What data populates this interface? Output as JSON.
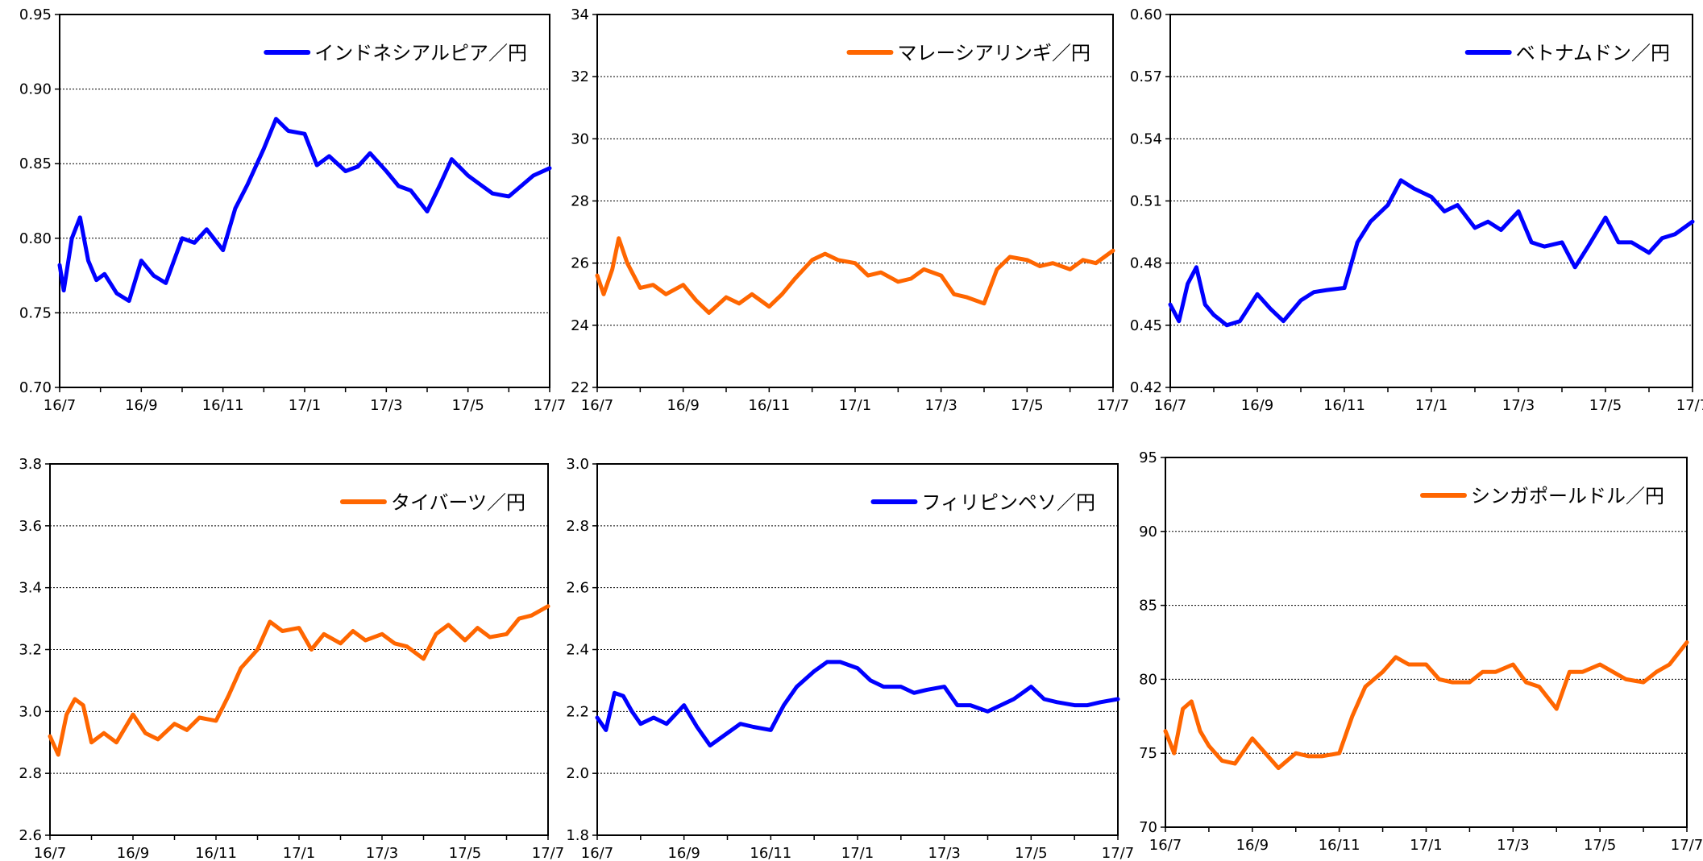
{
  "colors": {
    "blue": "#0000ff",
    "orange": "#ff6600"
  },
  "chart_data": [
    {
      "type": "line",
      "legend": "インドネシアルピア／円",
      "color": "#0000ff",
      "legend_position": "top-right",
      "grid": true,
      "ylim": [
        0.7,
        0.95
      ],
      "yticks": [
        0.7,
        0.75,
        0.8,
        0.85,
        0.9,
        0.95
      ],
      "ytick_labels": [
        "0.70",
        "0.75",
        "0.80",
        "0.85",
        "0.90",
        "0.95"
      ],
      "xtick_labels": [
        "16/7",
        "16/9",
        "16/11",
        "17/1",
        "17/3",
        "17/5",
        "17/7"
      ],
      "x": [
        0,
        0.1,
        0.3,
        0.5,
        0.7,
        0.9,
        1.1,
        1.4,
        1.7,
        2.0,
        2.3,
        2.6,
        3.0,
        3.3,
        3.6,
        4.0,
        4.3,
        4.6,
        5.0,
        5.3,
        5.6,
        6.0,
        6.3,
        6.6,
        7.0,
        7.3,
        7.6,
        8.0,
        8.3,
        8.6,
        9.0,
        9.3,
        9.6,
        10.0,
        10.3,
        10.6,
        11.0,
        11.3,
        11.6,
        12.0
      ],
      "y": [
        0.782,
        0.765,
        0.8,
        0.814,
        0.785,
        0.772,
        0.776,
        0.763,
        0.758,
        0.785,
        0.775,
        0.77,
        0.8,
        0.797,
        0.806,
        0.792,
        0.82,
        0.836,
        0.86,
        0.88,
        0.872,
        0.87,
        0.849,
        0.855,
        0.845,
        0.848,
        0.857,
        0.845,
        0.835,
        0.832,
        0.818,
        0.835,
        0.853,
        0.842,
        0.836,
        0.83,
        0.828,
        0.835,
        0.842,
        0.847
      ]
    },
    {
      "type": "line",
      "legend": "マレーシアリンギ／円",
      "color": "#ff6600",
      "legend_position": "top-right",
      "grid": true,
      "ylim": [
        22,
        34
      ],
      "yticks": [
        22,
        24,
        26,
        28,
        30,
        32,
        34
      ],
      "ytick_labels": [
        "22",
        "24",
        "26",
        "28",
        "30",
        "32",
        "34"
      ],
      "xtick_labels": [
        "16/7",
        "16/9",
        "16/11",
        "17/1",
        "17/3",
        "17/5",
        "17/7"
      ],
      "x": [
        0,
        0.15,
        0.35,
        0.5,
        0.7,
        1.0,
        1.3,
        1.6,
        2.0,
        2.3,
        2.6,
        3.0,
        3.3,
        3.6,
        4.0,
        4.3,
        4.6,
        5.0,
        5.3,
        5.6,
        6.0,
        6.3,
        6.6,
        7.0,
        7.3,
        7.6,
        8.0,
        8.3,
        8.6,
        9.0,
        9.3,
        9.6,
        10.0,
        10.3,
        10.6,
        11.0,
        11.3,
        11.6,
        12.0
      ],
      "y": [
        25.6,
        25.0,
        25.8,
        26.8,
        26.0,
        25.2,
        25.3,
        25.0,
        25.3,
        24.8,
        24.4,
        24.9,
        24.7,
        25.0,
        24.6,
        25.0,
        25.5,
        26.1,
        26.3,
        26.1,
        26.0,
        25.6,
        25.7,
        25.4,
        25.5,
        25.8,
        25.6,
        25.0,
        24.9,
        24.7,
        25.8,
        26.2,
        26.1,
        25.9,
        26.0,
        25.8,
        26.1,
        26.0,
        26.4
      ]
    },
    {
      "type": "line",
      "legend": "ベトナムドン／円",
      "color": "#0000ff",
      "legend_position": "top-right",
      "grid": true,
      "ylim": [
        0.42,
        0.6
      ],
      "yticks": [
        0.42,
        0.45,
        0.48,
        0.51,
        0.54,
        0.57,
        0.6
      ],
      "ytick_labels": [
        "0.42",
        "0.45",
        "0.48",
        "0.51",
        "0.54",
        "0.57",
        "0.60"
      ],
      "xtick_labels": [
        "16/7",
        "16/9",
        "16/11",
        "17/1",
        "17/3",
        "17/5",
        "17/7"
      ],
      "x": [
        0,
        0.2,
        0.4,
        0.6,
        0.8,
        1.0,
        1.3,
        1.6,
        2.0,
        2.3,
        2.6,
        3.0,
        3.3,
        3.6,
        4.0,
        4.3,
        4.6,
        5.0,
        5.3,
        5.6,
        6.0,
        6.3,
        6.6,
        7.0,
        7.3,
        7.6,
        8.0,
        8.3,
        8.6,
        9.0,
        9.3,
        9.6,
        10.0,
        10.3,
        10.6,
        11.0,
        11.3,
        11.6,
        12.0
      ],
      "y": [
        0.46,
        0.452,
        0.47,
        0.478,
        0.46,
        0.455,
        0.45,
        0.452,
        0.465,
        0.458,
        0.452,
        0.462,
        0.466,
        0.467,
        0.468,
        0.49,
        0.5,
        0.508,
        0.52,
        0.516,
        0.512,
        0.505,
        0.508,
        0.497,
        0.5,
        0.496,
        0.505,
        0.49,
        0.488,
        0.49,
        0.478,
        0.488,
        0.502,
        0.49,
        0.49,
        0.485,
        0.492,
        0.494,
        0.5
      ]
    },
    {
      "type": "line",
      "legend": "タイバーツ／円",
      "color": "#ff6600",
      "legend_position": "top-right",
      "grid": true,
      "ylim": [
        2.6,
        3.8
      ],
      "yticks": [
        2.6,
        2.8,
        3.0,
        3.2,
        3.4,
        3.6,
        3.8
      ],
      "ytick_labels": [
        "2.6",
        "2.8",
        "3.0",
        "3.2",
        "3.4",
        "3.6",
        "3.8"
      ],
      "xtick_labels": [
        "16/7",
        "16/9",
        "16/11",
        "17/1",
        "17/3",
        "17/5",
        "17/7"
      ],
      "x": [
        0,
        0.2,
        0.4,
        0.6,
        0.8,
        1.0,
        1.3,
        1.6,
        2.0,
        2.3,
        2.6,
        3.0,
        3.3,
        3.6,
        4.0,
        4.3,
        4.6,
        5.0,
        5.3,
        5.6,
        6.0,
        6.3,
        6.6,
        7.0,
        7.3,
        7.6,
        8.0,
        8.3,
        8.6,
        9.0,
        9.3,
        9.6,
        10.0,
        10.3,
        10.6,
        11.0,
        11.3,
        11.6,
        12.0
      ],
      "y": [
        2.92,
        2.86,
        2.99,
        3.04,
        3.02,
        2.9,
        2.93,
        2.9,
        2.99,
        2.93,
        2.91,
        2.96,
        2.94,
        2.98,
        2.97,
        3.05,
        3.14,
        3.2,
        3.29,
        3.26,
        3.27,
        3.2,
        3.25,
        3.22,
        3.26,
        3.23,
        3.25,
        3.22,
        3.21,
        3.17,
        3.25,
        3.28,
        3.23,
        3.27,
        3.24,
        3.25,
        3.3,
        3.31,
        3.34
      ]
    },
    {
      "type": "line",
      "legend": "フィリピンペソ／円",
      "color": "#0000ff",
      "legend_position": "top-right",
      "grid": true,
      "ylim": [
        1.8,
        3.0
      ],
      "yticks": [
        1.8,
        2.0,
        2.2,
        2.4,
        2.6,
        2.8,
        3.0
      ],
      "ytick_labels": [
        "1.8",
        "2.0",
        "2.2",
        "2.4",
        "2.6",
        "2.8",
        "3.0"
      ],
      "xtick_labels": [
        "16/7",
        "16/9",
        "16/11",
        "17/1",
        "17/3",
        "17/5",
        "17/7"
      ],
      "x": [
        0,
        0.2,
        0.4,
        0.6,
        0.8,
        1.0,
        1.3,
        1.6,
        2.0,
        2.3,
        2.6,
        3.0,
        3.3,
        3.6,
        4.0,
        4.3,
        4.6,
        5.0,
        5.3,
        5.6,
        6.0,
        6.3,
        6.6,
        7.0,
        7.3,
        7.6,
        8.0,
        8.3,
        8.6,
        9.0,
        9.3,
        9.6,
        10.0,
        10.3,
        10.6,
        11.0,
        11.3,
        11.6,
        12.0
      ],
      "y": [
        2.18,
        2.14,
        2.26,
        2.25,
        2.2,
        2.16,
        2.18,
        2.16,
        2.22,
        2.15,
        2.09,
        2.13,
        2.16,
        2.15,
        2.14,
        2.22,
        2.28,
        2.33,
        2.36,
        2.36,
        2.34,
        2.3,
        2.28,
        2.28,
        2.26,
        2.27,
        2.28,
        2.22,
        2.22,
        2.2,
        2.22,
        2.24,
        2.28,
        2.24,
        2.23,
        2.22,
        2.22,
        2.23,
        2.24
      ]
    },
    {
      "type": "line",
      "legend": "シンガポールドル／円",
      "color": "#ff6600",
      "legend_position": "top-right",
      "grid": true,
      "ylim": [
        70,
        95
      ],
      "yticks": [
        70,
        75,
        80,
        85,
        90,
        95
      ],
      "ytick_labels": [
        "70",
        "75",
        "80",
        "85",
        "90",
        "95"
      ],
      "xtick_labels": [
        "16/7",
        "16/9",
        "16/11",
        "17/1",
        "17/3",
        "17/5",
        "17/7"
      ],
      "x": [
        0,
        0.2,
        0.4,
        0.6,
        0.8,
        1.0,
        1.3,
        1.6,
        2.0,
        2.3,
        2.6,
        3.0,
        3.3,
        3.6,
        4.0,
        4.3,
        4.6,
        5.0,
        5.3,
        5.6,
        6.0,
        6.3,
        6.6,
        7.0,
        7.3,
        7.6,
        8.0,
        8.3,
        8.6,
        9.0,
        9.3,
        9.6,
        10.0,
        10.3,
        10.6,
        11.0,
        11.3,
        11.6,
        12.0
      ],
      "y": [
        76.5,
        75.0,
        78.0,
        78.5,
        76.5,
        75.5,
        74.5,
        74.3,
        76.0,
        75.0,
        74.0,
        75.0,
        74.8,
        74.8,
        75.0,
        77.5,
        79.5,
        80.5,
        81.5,
        81.0,
        81.0,
        80.0,
        79.8,
        79.8,
        80.5,
        80.5,
        81.0,
        79.8,
        79.5,
        78.0,
        80.5,
        80.5,
        81.0,
        80.5,
        80.0,
        79.8,
        80.5,
        81.0,
        82.5
      ]
    }
  ]
}
